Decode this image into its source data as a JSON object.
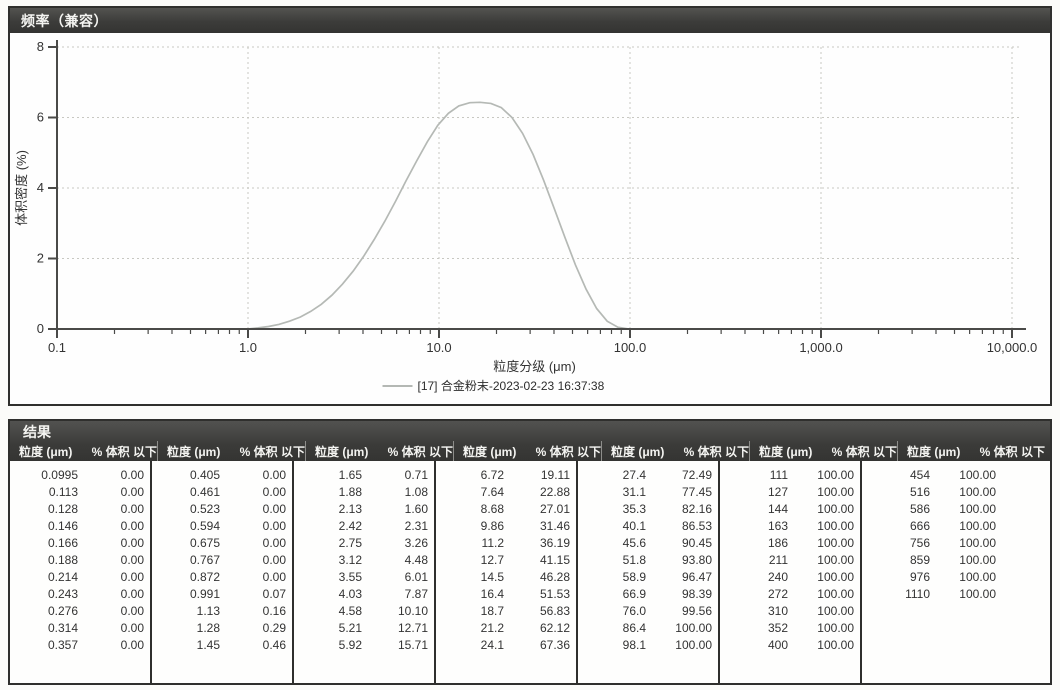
{
  "chart_panel": {
    "title": "频率（兼容）"
  },
  "chart_data": {
    "type": "line",
    "title": "频率（兼容）",
    "xlabel": "粒度分级 (μm)",
    "ylabel": "体积密度 (%)",
    "x_scale": "log",
    "xlim": [
      0.1,
      10000
    ],
    "ylim": [
      0,
      8
    ],
    "x_ticks": [
      "0.1",
      "1.0",
      "10.0",
      "100.0",
      "1,000.0",
      "10,000.0"
    ],
    "x_tick_values": [
      0.1,
      1,
      10,
      100,
      1000,
      10000
    ],
    "y_ticks": [
      0,
      2,
      4,
      6,
      8
    ],
    "grid": "dashed",
    "grid_color": "#c8c8c2",
    "axis_color": "#4a4a48",
    "legend": {
      "position": "bottom",
      "entries": [
        "[17] 合金粉末-2023-02-23 16:37:38"
      ]
    },
    "series": [
      {
        "name": "[17] 合金粉末-2023-02-23 16:37:38",
        "color": "#b5b9b5",
        "x": [
          1.0,
          1.13,
          1.28,
          1.45,
          1.65,
          1.88,
          2.13,
          2.42,
          2.75,
          3.12,
          3.55,
          4.03,
          4.58,
          5.21,
          5.92,
          6.72,
          7.64,
          8.68,
          9.86,
          11.2,
          12.7,
          14.5,
          16.4,
          18.7,
          21.2,
          24.1,
          27.4,
          31.1,
          35.3,
          40.1,
          45.6,
          51.8,
          58.9,
          66.9,
          76.0,
          86.4,
          98.1
        ],
        "y": [
          0.0,
          0.03,
          0.07,
          0.13,
          0.22,
          0.34,
          0.5,
          0.7,
          0.96,
          1.27,
          1.64,
          2.06,
          2.54,
          3.06,
          3.62,
          4.2,
          4.77,
          5.31,
          5.78,
          6.12,
          6.33,
          6.42,
          6.43,
          6.4,
          6.28,
          6.0,
          5.55,
          4.95,
          4.22,
          3.42,
          2.6,
          1.82,
          1.13,
          0.58,
          0.22,
          0.05,
          0.0
        ]
      }
    ]
  },
  "results_panel": {
    "title": "结果",
    "col_headers": {
      "size": "粒度 (μm)",
      "pct": "% 体积 以下"
    },
    "groups": [
      {
        "rows": [
          [
            "0.0995",
            "0.00"
          ],
          [
            "0.113",
            "0.00"
          ],
          [
            "0.128",
            "0.00"
          ],
          [
            "0.146",
            "0.00"
          ],
          [
            "0.166",
            "0.00"
          ],
          [
            "0.188",
            "0.00"
          ],
          [
            "0.214",
            "0.00"
          ],
          [
            "0.243",
            "0.00"
          ],
          [
            "0.276",
            "0.00"
          ],
          [
            "0.314",
            "0.00"
          ],
          [
            "0.357",
            "0.00"
          ]
        ]
      },
      {
        "rows": [
          [
            "0.405",
            "0.00"
          ],
          [
            "0.461",
            "0.00"
          ],
          [
            "0.523",
            "0.00"
          ],
          [
            "0.594",
            "0.00"
          ],
          [
            "0.675",
            "0.00"
          ],
          [
            "0.767",
            "0.00"
          ],
          [
            "0.872",
            "0.00"
          ],
          [
            "0.991",
            "0.07"
          ],
          [
            "1.13",
            "0.16"
          ],
          [
            "1.28",
            "0.29"
          ],
          [
            "1.45",
            "0.46"
          ]
        ]
      },
      {
        "rows": [
          [
            "1.65",
            "0.71"
          ],
          [
            "1.88",
            "1.08"
          ],
          [
            "2.13",
            "1.60"
          ],
          [
            "2.42",
            "2.31"
          ],
          [
            "2.75",
            "3.26"
          ],
          [
            "3.12",
            "4.48"
          ],
          [
            "3.55",
            "6.01"
          ],
          [
            "4.03",
            "7.87"
          ],
          [
            "4.58",
            "10.10"
          ],
          [
            "5.21",
            "12.71"
          ],
          [
            "5.92",
            "15.71"
          ]
        ]
      },
      {
        "rows": [
          [
            "6.72",
            "19.11"
          ],
          [
            "7.64",
            "22.88"
          ],
          [
            "8.68",
            "27.01"
          ],
          [
            "9.86",
            "31.46"
          ],
          [
            "11.2",
            "36.19"
          ],
          [
            "12.7",
            "41.15"
          ],
          [
            "14.5",
            "46.28"
          ],
          [
            "16.4",
            "51.53"
          ],
          [
            "18.7",
            "56.83"
          ],
          [
            "21.2",
            "62.12"
          ],
          [
            "24.1",
            "67.36"
          ]
        ]
      },
      {
        "rows": [
          [
            "27.4",
            "72.49"
          ],
          [
            "31.1",
            "77.45"
          ],
          [
            "35.3",
            "82.16"
          ],
          [
            "40.1",
            "86.53"
          ],
          [
            "45.6",
            "90.45"
          ],
          [
            "51.8",
            "93.80"
          ],
          [
            "58.9",
            "96.47"
          ],
          [
            "66.9",
            "98.39"
          ],
          [
            "76.0",
            "99.56"
          ],
          [
            "86.4",
            "100.00"
          ],
          [
            "98.1",
            "100.00"
          ]
        ]
      },
      {
        "rows": [
          [
            "111",
            "100.00"
          ],
          [
            "127",
            "100.00"
          ],
          [
            "144",
            "100.00"
          ],
          [
            "163",
            "100.00"
          ],
          [
            "186",
            "100.00"
          ],
          [
            "211",
            "100.00"
          ],
          [
            "240",
            "100.00"
          ],
          [
            "272",
            "100.00"
          ],
          [
            "310",
            "100.00"
          ],
          [
            "352",
            "100.00"
          ],
          [
            "400",
            "100.00"
          ]
        ]
      },
      {
        "rows": [
          [
            "454",
            "100.00"
          ],
          [
            "516",
            "100.00"
          ],
          [
            "586",
            "100.00"
          ],
          [
            "666",
            "100.00"
          ],
          [
            "756",
            "100.00"
          ],
          [
            "859",
            "100.00"
          ],
          [
            "976",
            "100.00"
          ],
          [
            "1110",
            "100.00"
          ]
        ]
      }
    ]
  }
}
